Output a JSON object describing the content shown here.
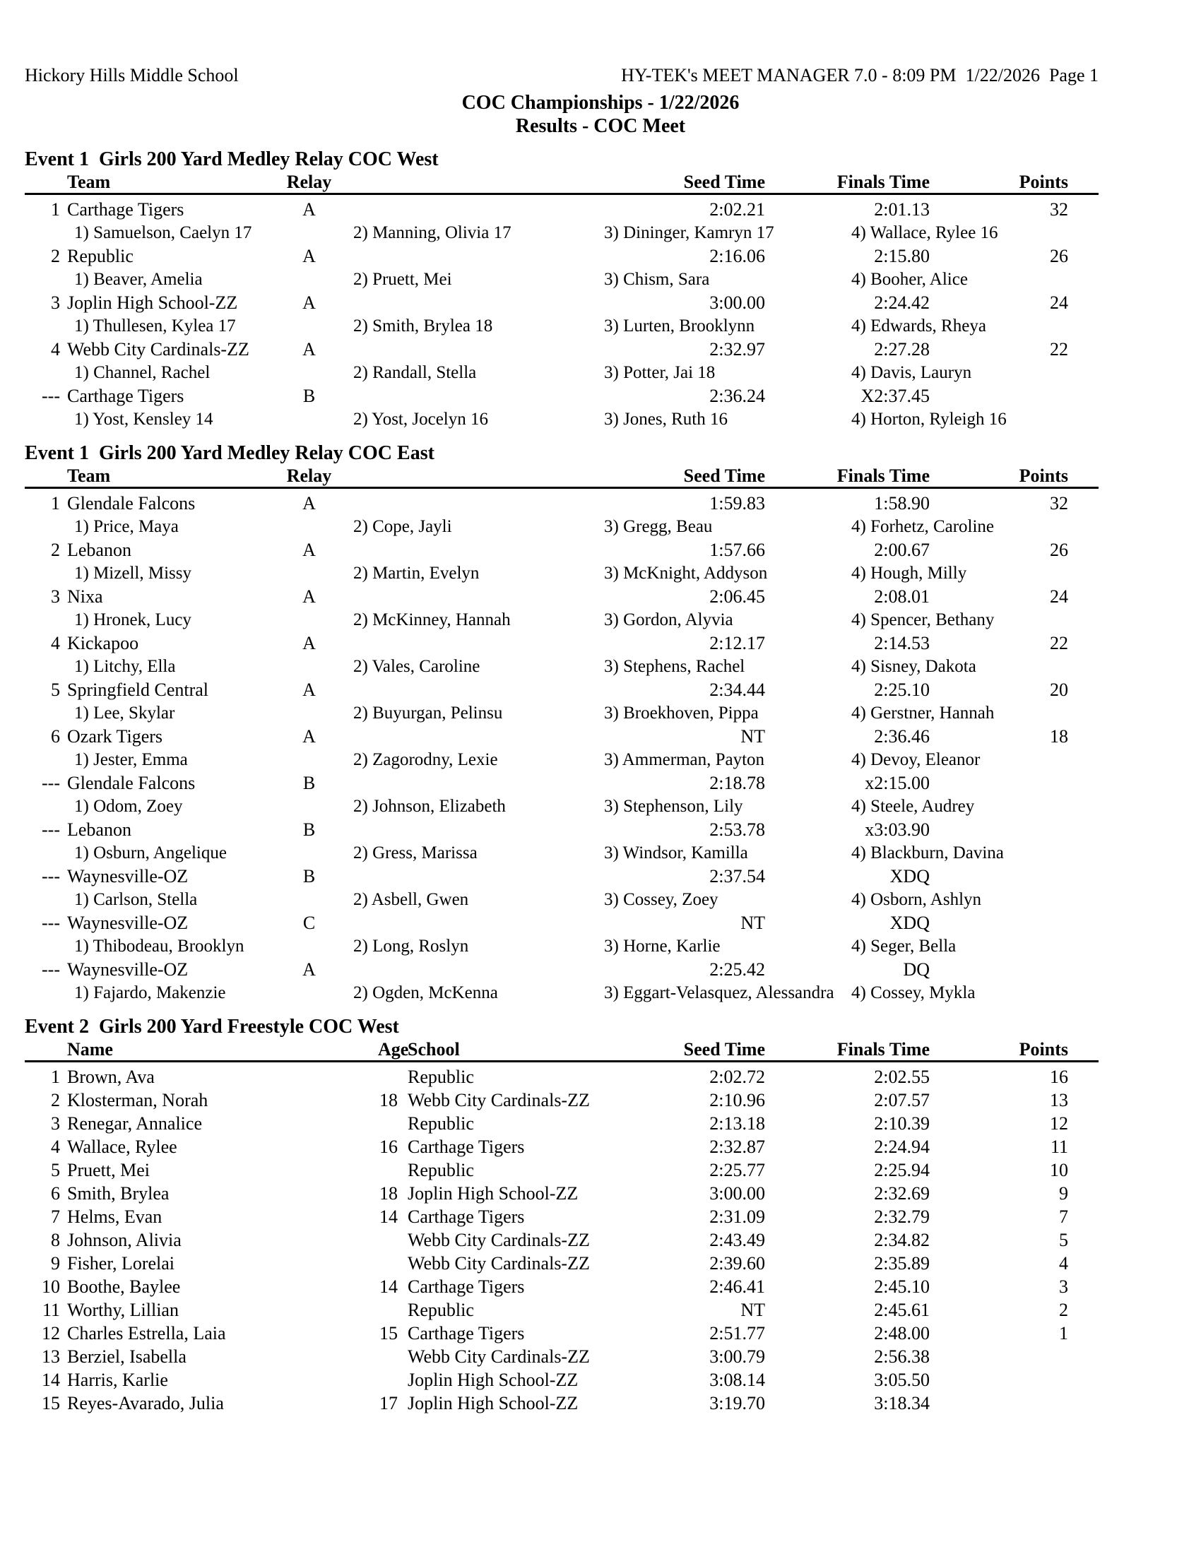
{
  "page": {
    "school": "Hickory Hills Middle School",
    "generator": "HY-TEK's MEET MANAGER 7.0 - 8:09 PM  1/22/2026  Page 1",
    "title": "COC Championships - 1/22/2026",
    "subtitle": "Results - COC Meet"
  },
  "events": [
    {
      "heading": "Event 1  Girls 200 Yard Medley Relay COC West",
      "type": "relay",
      "columns": [
        "Team",
        "Relay",
        "Seed Time",
        "Finals Time",
        "Points"
      ],
      "entries": [
        {
          "place": "1",
          "team": "Carthage Tigers",
          "relay": "A",
          "seed": "2:02.21",
          "finals": "2:01.13",
          "points": "32",
          "swimmers": [
            "1) Samuelson, Caelyn 17",
            "2) Manning, Olivia 17",
            "3) Dininger, Kamryn 17",
            "4) Wallace, Rylee 16"
          ]
        },
        {
          "place": "2",
          "team": "Republic",
          "relay": "A",
          "seed": "2:16.06",
          "finals": "2:15.80",
          "points": "26",
          "swimmers": [
            "1) Beaver, Amelia",
            "2) Pruett, Mei",
            "3) Chism, Sara",
            "4) Booher, Alice"
          ]
        },
        {
          "place": "3",
          "team": "Joplin High School-ZZ",
          "relay": "A",
          "seed": "3:00.00",
          "finals": "2:24.42",
          "points": "24",
          "swimmers": [
            "1) Thullesen, Kylea 17",
            "2) Smith, Brylea 18",
            "3) Lurten, Brooklynn",
            "4) Edwards, Rheya"
          ]
        },
        {
          "place": "4",
          "team": "Webb City Cardinals-ZZ",
          "relay": "A",
          "seed": "2:32.97",
          "finals": "2:27.28",
          "points": "22",
          "swimmers": [
            "1) Channel, Rachel",
            "2) Randall, Stella",
            "3) Potter, Jai 18",
            "4) Davis, Lauryn"
          ]
        },
        {
          "place": "---",
          "team": "Carthage Tigers",
          "relay": "B",
          "seed": "2:36.24",
          "finals": "X2:37.45",
          "points": "",
          "swimmers": [
            "1) Yost, Kensley 14",
            "2) Yost, Jocelyn 16",
            "3) Jones, Ruth 16",
            "4) Horton, Ryleigh 16"
          ]
        }
      ]
    },
    {
      "heading": "Event 1  Girls 200 Yard Medley Relay COC East",
      "type": "relay",
      "columns": [
        "Team",
        "Relay",
        "Seed Time",
        "Finals Time",
        "Points"
      ],
      "entries": [
        {
          "place": "1",
          "team": "Glendale Falcons",
          "relay": "A",
          "seed": "1:59.83",
          "finals": "1:58.90",
          "points": "32",
          "swimmers": [
            "1) Price, Maya",
            "2) Cope, Jayli",
            "3) Gregg, Beau",
            "4) Forhetz, Caroline"
          ]
        },
        {
          "place": "2",
          "team": "Lebanon",
          "relay": "A",
          "seed": "1:57.66",
          "finals": "2:00.67",
          "points": "26",
          "swimmers": [
            "1) Mizell, Missy",
            "2) Martin, Evelyn",
            "3) McKnight, Addyson",
            "4) Hough, Milly"
          ]
        },
        {
          "place": "3",
          "team": "Nixa",
          "relay": "A",
          "seed": "2:06.45",
          "finals": "2:08.01",
          "points": "24",
          "swimmers": [
            "1) Hronek, Lucy",
            "2) McKinney, Hannah",
            "3) Gordon, Alyvia",
            "4) Spencer, Bethany"
          ]
        },
        {
          "place": "4",
          "team": "Kickapoo",
          "relay": "A",
          "seed": "2:12.17",
          "finals": "2:14.53",
          "points": "22",
          "swimmers": [
            "1) Litchy, Ella",
            "2) Vales, Caroline",
            "3) Stephens, Rachel",
            "4) Sisney, Dakota"
          ]
        },
        {
          "place": "5",
          "team": "Springfield Central",
          "relay": "A",
          "seed": "2:34.44",
          "finals": "2:25.10",
          "points": "20",
          "swimmers": [
            "1) Lee, Skylar",
            "2) Buyurgan, Pelinsu",
            "3) Broekhoven, Pippa",
            "4) Gerstner, Hannah"
          ]
        },
        {
          "place": "6",
          "team": "Ozark Tigers",
          "relay": "A",
          "seed": "NT",
          "finals": "2:36.46",
          "points": "18",
          "swimmers": [
            "1) Jester, Emma",
            "2) Zagorodny, Lexie",
            "3) Ammerman, Payton",
            "4) Devoy, Eleanor"
          ]
        },
        {
          "place": "---",
          "team": "Glendale Falcons",
          "relay": "B",
          "seed": "2:18.78",
          "finals": "x2:15.00",
          "points": "",
          "swimmers": [
            "1) Odom, Zoey",
            "2) Johnson, Elizabeth",
            "3) Stephenson, Lily",
            "4) Steele, Audrey"
          ]
        },
        {
          "place": "---",
          "team": "Lebanon",
          "relay": "B",
          "seed": "2:53.78",
          "finals": "x3:03.90",
          "points": "",
          "swimmers": [
            "1) Osburn, Angelique",
            "2) Gress, Marissa",
            "3) Windsor, Kamilla",
            "4) Blackburn, Davina"
          ]
        },
        {
          "place": "---",
          "team": "Waynesville-OZ",
          "relay": "B",
          "seed": "2:37.54",
          "finals": "XDQ",
          "points": "",
          "swimmers": [
            "1) Carlson, Stella",
            "2) Asbell, Gwen",
            "3) Cossey, Zoey",
            "4) Osborn, Ashlyn"
          ]
        },
        {
          "place": "---",
          "team": "Waynesville-OZ",
          "relay": "C",
          "seed": "NT",
          "finals": "XDQ",
          "points": "",
          "swimmers": [
            "1) Thibodeau, Brooklyn",
            "2) Long, Roslyn",
            "3) Horne, Karlie",
            "4) Seger, Bella"
          ]
        },
        {
          "place": "---",
          "team": "Waynesville-OZ",
          "relay": "A",
          "seed": "2:25.42",
          "finals": "DQ",
          "points": "",
          "swimmers": [
            "1) Fajardo, Makenzie",
            "2) Ogden, McKenna",
            "3) Eggart-Velasquez, Alessandra",
            "4) Cossey, Mykla"
          ]
        }
      ]
    },
    {
      "heading": "Event 2  Girls 200 Yard Freestyle COC West",
      "type": "individual",
      "columns": [
        "Name",
        "Age",
        "School",
        "Seed Time",
        "Finals Time",
        "Points"
      ],
      "entries": [
        {
          "place": "1",
          "name": "Brown, Ava",
          "age": "",
          "school": "Republic",
          "seed": "2:02.72",
          "finals": "2:02.55",
          "points": "16"
        },
        {
          "place": "2",
          "name": "Klosterman, Norah",
          "age": "18",
          "school": "Webb City Cardinals-ZZ",
          "seed": "2:10.96",
          "finals": "2:07.57",
          "points": "13"
        },
        {
          "place": "3",
          "name": "Renegar, Annalice",
          "age": "",
          "school": "Republic",
          "seed": "2:13.18",
          "finals": "2:10.39",
          "points": "12"
        },
        {
          "place": "4",
          "name": "Wallace, Rylee",
          "age": "16",
          "school": "Carthage Tigers",
          "seed": "2:32.87",
          "finals": "2:24.94",
          "points": "11"
        },
        {
          "place": "5",
          "name": "Pruett, Mei",
          "age": "",
          "school": "Republic",
          "seed": "2:25.77",
          "finals": "2:25.94",
          "points": "10"
        },
        {
          "place": "6",
          "name": "Smith, Brylea",
          "age": "18",
          "school": "Joplin High School-ZZ",
          "seed": "3:00.00",
          "finals": "2:32.69",
          "points": "9"
        },
        {
          "place": "7",
          "name": "Helms, Evan",
          "age": "14",
          "school": "Carthage Tigers",
          "seed": "2:31.09",
          "finals": "2:32.79",
          "points": "7"
        },
        {
          "place": "8",
          "name": "Johnson, Alivia",
          "age": "",
          "school": "Webb City Cardinals-ZZ",
          "seed": "2:43.49",
          "finals": "2:34.82",
          "points": "5"
        },
        {
          "place": "9",
          "name": "Fisher, Lorelai",
          "age": "",
          "school": "Webb City Cardinals-ZZ",
          "seed": "2:39.60",
          "finals": "2:35.89",
          "points": "4"
        },
        {
          "place": "10",
          "name": "Boothe, Baylee",
          "age": "14",
          "school": "Carthage Tigers",
          "seed": "2:46.41",
          "finals": "2:45.10",
          "points": "3"
        },
        {
          "place": "11",
          "name": "Worthy, Lillian",
          "age": "",
          "school": "Republic",
          "seed": "NT",
          "finals": "2:45.61",
          "points": "2"
        },
        {
          "place": "12",
          "name": "Charles Estrella, Laia",
          "age": "15",
          "school": "Carthage Tigers",
          "seed": "2:51.77",
          "finals": "2:48.00",
          "points": "1"
        },
        {
          "place": "13",
          "name": "Berziel, Isabella",
          "age": "",
          "school": "Webb City Cardinals-ZZ",
          "seed": "3:00.79",
          "finals": "2:56.38",
          "points": ""
        },
        {
          "place": "14",
          "name": "Harris, Karlie",
          "age": "",
          "school": "Joplin High School-ZZ",
          "seed": "3:08.14",
          "finals": "3:05.50",
          "points": ""
        },
        {
          "place": "15",
          "name": "Reyes-Avarado, Julia",
          "age": "17",
          "school": "Joplin High School-ZZ",
          "seed": "3:19.70",
          "finals": "3:18.34",
          "points": ""
        }
      ]
    }
  ]
}
